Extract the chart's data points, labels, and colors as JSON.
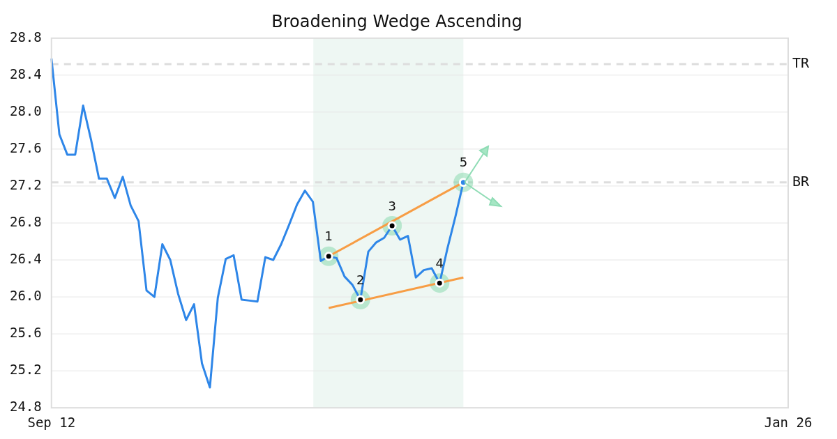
{
  "chart_data": {
    "type": "line",
    "title": "Broadening Wedge Ascending",
    "categories": [
      "Sep 12",
      null,
      null,
      null,
      null,
      null,
      null,
      null,
      null,
      null,
      null,
      null,
      null,
      null,
      null,
      null,
      null,
      null,
      null,
      null,
      null,
      null,
      null,
      null,
      null,
      null,
      null,
      null,
      null,
      null,
      null,
      null,
      null,
      null,
      null,
      null,
      null,
      null,
      null,
      null,
      null,
      null,
      null,
      null,
      null,
      null,
      null,
      null,
      null,
      null,
      null,
      null,
      null,
      null,
      null,
      null,
      null,
      null,
      null,
      null,
      null,
      null,
      null,
      null,
      null,
      null,
      null,
      null,
      null,
      null,
      null,
      null,
      null,
      null,
      null,
      null,
      null,
      null,
      null,
      null,
      null,
      null,
      null,
      null,
      null,
      null,
      null,
      null,
      null,
      null,
      null,
      null,
      null,
      "Jan 26"
    ],
    "ylim": [
      24.8,
      28.8
    ],
    "yticks": [
      24.8,
      25.2,
      25.6,
      {
        "value": 26,
        "label": "26.0"
      },
      26.4,
      26.8,
      27.2,
      27.6,
      {
        "value": 28,
        "label": "28.0"
      },
      28.4,
      28.8
    ],
    "grid": "y",
    "legend": false,
    "line_style": "solid",
    "series": [
      {
        "color": "#2e86e8",
        "values": [
          28.58,
          27.76,
          27.54,
          27.54,
          28.07,
          27.7,
          27.28,
          27.28,
          27.07,
          27.3,
          26.99,
          26.82,
          26.07,
          26.0,
          26.57,
          26.4,
          26.03,
          25.75,
          25.92,
          25.28,
          25.02,
          25.99,
          26.41,
          26.45,
          25.97,
          25.96,
          25.95,
          26.43,
          26.4,
          26.57,
          26.78,
          27.0,
          27.15,
          27.03,
          26.39,
          26.44,
          26.42,
          26.22,
          26.13,
          25.97,
          26.49,
          26.59,
          26.64,
          26.77,
          26.62,
          26.66,
          26.21,
          26.29,
          26.31,
          26.15,
          26.53,
          26.87,
          27.24,
          null,
          null,
          null,
          null,
          null,
          null,
          null,
          null,
          null,
          null,
          null,
          null,
          null,
          null,
          null,
          null,
          null,
          null,
          null,
          null,
          null,
          null,
          null,
          null,
          null,
          null,
          null,
          null,
          null,
          null,
          null,
          null,
          null,
          null,
          null,
          null,
          null,
          null,
          null,
          null,
          null
        ]
      },
      {
        "type": "line",
        "color": "#f79d45",
        "values": [
          null,
          null,
          null,
          null,
          null,
          null,
          null,
          null,
          null,
          null,
          null,
          null,
          null,
          null,
          null,
          null,
          null,
          null,
          null,
          null,
          null,
          null,
          null,
          null,
          null,
          null,
          null,
          null,
          null,
          null,
          null,
          null,
          null,
          null,
          null,
          26.44,
          null,
          null,
          null,
          null,
          null,
          null,
          null,
          null,
          null,
          null,
          null,
          null,
          null,
          null,
          null,
          null,
          27.24,
          null,
          null,
          null,
          null,
          null,
          null,
          null,
          null,
          null,
          null,
          null,
          null,
          null,
          null,
          null,
          null,
          null,
          null,
          null,
          null,
          null,
          null,
          null,
          null,
          null,
          null,
          null,
          null,
          null,
          null,
          null,
          null,
          null,
          null,
          null,
          null,
          null,
          null,
          null,
          null,
          null
        ]
      },
      {
        "type": "line",
        "color": "#f79d45",
        "values": [
          null,
          null,
          null,
          null,
          null,
          null,
          null,
          null,
          null,
          null,
          null,
          null,
          null,
          null,
          null,
          null,
          null,
          null,
          null,
          null,
          null,
          null,
          null,
          null,
          null,
          null,
          null,
          null,
          null,
          null,
          null,
          null,
          null,
          null,
          null,
          25.88,
          null,
          null,
          null,
          null,
          null,
          null,
          null,
          null,
          null,
          null,
          null,
          null,
          null,
          null,
          null,
          null,
          26.21,
          null,
          null,
          null,
          null,
          null,
          null,
          null,
          null,
          null,
          null,
          null,
          null,
          null,
          null,
          null,
          null,
          null,
          null,
          null,
          null,
          null,
          null,
          null,
          null,
          null,
          null,
          null,
          null,
          null,
          null,
          null,
          null,
          null,
          null,
          null,
          null,
          null,
          null,
          null,
          null,
          null
        ]
      },
      {
        "type": "scatter",
        "marker": "circle",
        "colors": [
          null,
          null,
          null,
          null,
          null,
          null,
          null,
          null,
          null,
          null,
          null,
          null,
          null,
          null,
          null,
          null,
          null,
          null,
          null,
          null,
          null,
          null,
          null,
          null,
          null,
          null,
          null,
          null,
          null,
          null,
          null,
          null,
          null,
          null,
          null,
          "#000000",
          null,
          null,
          null,
          "#000000",
          null,
          null,
          null,
          "#000000",
          null,
          null,
          null,
          null,
          null,
          "#000000",
          null,
          null,
          "#2e86e8",
          null,
          null,
          null,
          null,
          null,
          null,
          null,
          null,
          null,
          null,
          null,
          null,
          null,
          null,
          null,
          null,
          null,
          null,
          null,
          null,
          null,
          null,
          null,
          null,
          null,
          null,
          null,
          null,
          null,
          null,
          null,
          null,
          null,
          null,
          null,
          null,
          null,
          null,
          null,
          null,
          null
        ],
        "values": [
          null,
          null,
          null,
          null,
          null,
          null,
          null,
          null,
          null,
          null,
          null,
          null,
          null,
          null,
          null,
          null,
          null,
          null,
          null,
          null,
          null,
          null,
          null,
          null,
          null,
          null,
          null,
          null,
          null,
          null,
          null,
          null,
          null,
          null,
          null,
          26.44,
          null,
          null,
          null,
          25.97,
          null,
          null,
          null,
          26.77,
          null,
          null,
          null,
          null,
          null,
          26.15,
          null,
          null,
          27.24,
          null,
          null,
          null,
          null,
          null,
          null,
          null,
          null,
          null,
          null,
          null,
          null,
          null,
          null,
          null,
          null,
          null,
          null,
          null,
          null,
          null,
          null,
          null,
          null,
          null,
          null,
          null,
          null,
          null,
          null,
          null,
          null,
          null,
          null,
          null,
          null,
          null,
          null,
          null,
          null,
          null
        ]
      }
    ],
    "ref_lines": [
      {
        "axis": "y",
        "value": 28.52,
        "label": "TR",
        "color": "#dddddd",
        "line_style": "dashed"
      },
      {
        "axis": "y",
        "value": 27.24,
        "label": "BR",
        "color": "#dddddd",
        "line_style": "dashed"
      }
    ],
    "annotations": [
      "1",
      "2",
      "3",
      "4",
      "5"
    ]
  }
}
